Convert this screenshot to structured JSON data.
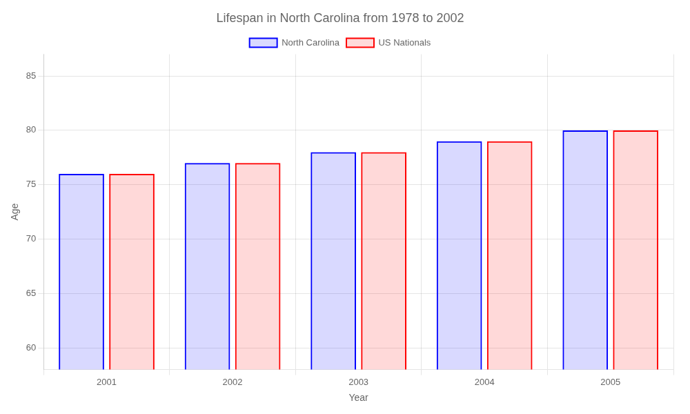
{
  "chart_data": {
    "type": "bar",
    "title": "Lifespan in North Carolina from 1978 to 2002",
    "xlabel": "Year",
    "ylabel": "Age",
    "categories": [
      "2001",
      "2002",
      "2003",
      "2004",
      "2005"
    ],
    "series": [
      {
        "name": "North Carolina",
        "color": "#0000ff",
        "values": [
          76,
          77,
          78,
          79,
          80
        ]
      },
      {
        "name": "US Nationals",
        "color": "#ff0000",
        "values": [
          76,
          77,
          78,
          79,
          80
        ]
      }
    ],
    "ylim": [
      58,
      87
    ],
    "yticks": [
      60,
      65,
      70,
      75,
      80,
      85
    ],
    "grid": true,
    "legend": "top"
  }
}
